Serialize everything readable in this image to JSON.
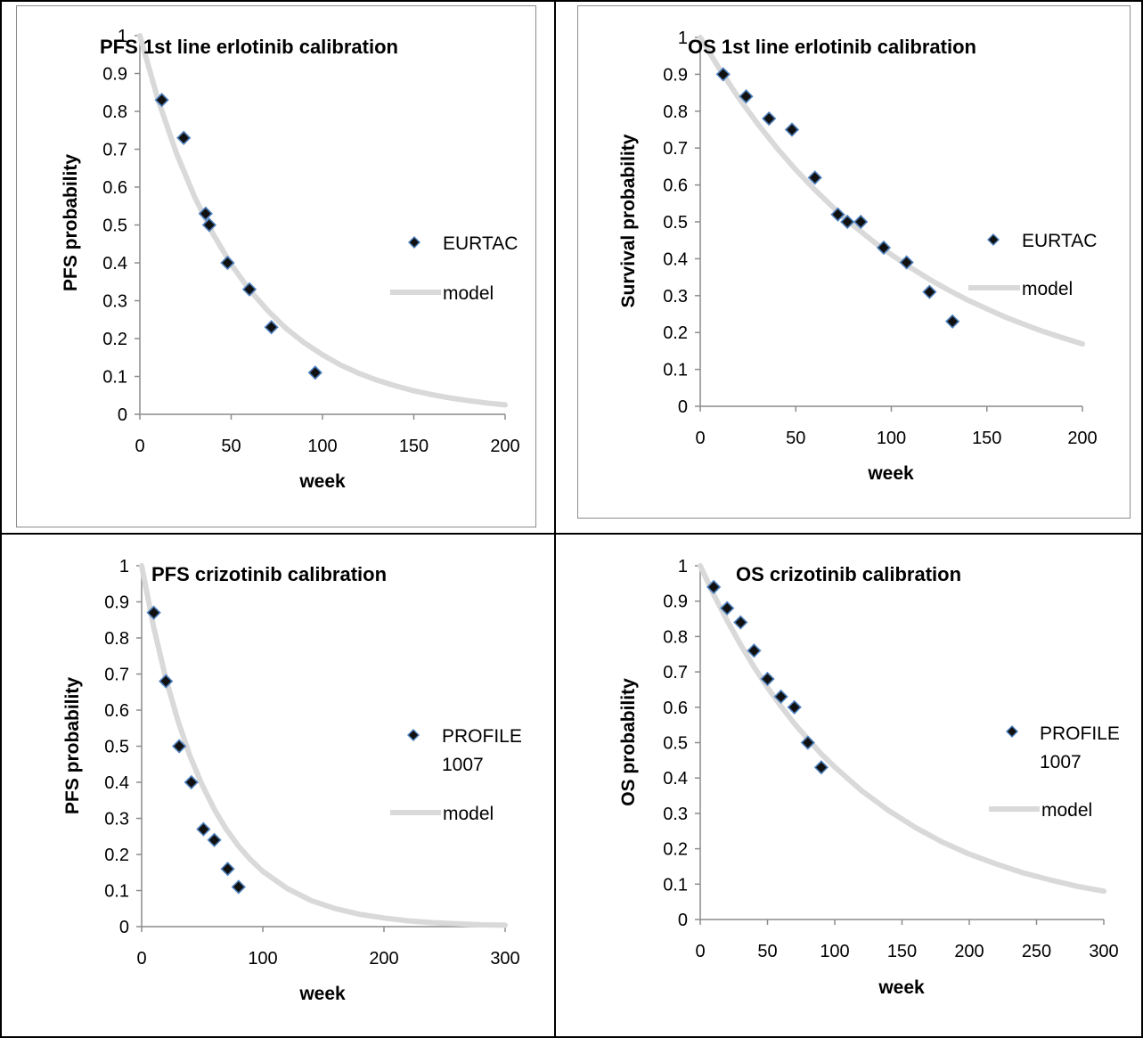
{
  "chart_data": [
    {
      "type": "scatter",
      "title": "PFS 1st line erlotinib calibration",
      "xlabel": "week",
      "ylabel": "PFS probability",
      "xlim": [
        0,
        200
      ],
      "ylim": [
        0,
        1
      ],
      "xticks": [
        "0",
        "50",
        "100",
        "150",
        "200"
      ],
      "yticks": [
        "0",
        "0.1",
        "0.2",
        "0.3",
        "0.4",
        "0.5",
        "0.6",
        "0.7",
        "0.8",
        "0.9",
        "1"
      ],
      "legend": [
        "EURTAC",
        "model"
      ],
      "legend_position": "right",
      "series": [
        {
          "name": "EURTAC",
          "kind": "points",
          "x": [
            12,
            24,
            36,
            38,
            48,
            60,
            72,
            96
          ],
          "y": [
            0.83,
            0.73,
            0.53,
            0.5,
            0.4,
            0.33,
            0.23,
            0.11
          ]
        },
        {
          "name": "model",
          "kind": "line",
          "x": [
            0,
            10,
            20,
            30,
            40,
            50,
            60,
            70,
            80,
            90,
            100,
            110,
            120,
            130,
            140,
            150,
            160,
            170,
            180,
            190,
            200
          ],
          "y": [
            1.0,
            0.83,
            0.69,
            0.574,
            0.477,
            0.396,
            0.329,
            0.274,
            0.227,
            0.189,
            0.157,
            0.13,
            0.108,
            0.09,
            0.075,
            0.062,
            0.052,
            0.043,
            0.036,
            0.03,
            0.025
          ]
        }
      ]
    },
    {
      "type": "scatter",
      "title": "OS 1st line erlotinib calibration",
      "xlabel": "week",
      "ylabel": "Survival probability",
      "xlim": [
        0,
        200
      ],
      "ylim": [
        0,
        1
      ],
      "xticks": [
        "0",
        "50",
        "100",
        "150",
        "200"
      ],
      "yticks": [
        "0",
        "0.1",
        "0.2",
        "0.3",
        "0.4",
        "0.5",
        "0.6",
        "0.7",
        "0.8",
        "0.9",
        "1"
      ],
      "legend": [
        "EURTAC",
        "model"
      ],
      "legend_position": "right",
      "series": [
        {
          "name": "EURTAC",
          "kind": "points",
          "x": [
            12,
            24,
            36,
            48,
            60,
            72,
            77,
            84,
            96,
            108,
            120,
            132
          ],
          "y": [
            0.9,
            0.84,
            0.78,
            0.75,
            0.62,
            0.52,
            0.5,
            0.5,
            0.43,
            0.39,
            0.31,
            0.23
          ]
        },
        {
          "name": "model",
          "kind": "line",
          "x": [
            0,
            10,
            20,
            30,
            40,
            50,
            60,
            70,
            80,
            90,
            100,
            110,
            120,
            130,
            140,
            150,
            160,
            170,
            180,
            190,
            200
          ],
          "y": [
            1.0,
            0.915,
            0.837,
            0.766,
            0.701,
            0.641,
            0.587,
            0.537,
            0.491,
            0.449,
            0.411,
            0.376,
            0.344,
            0.315,
            0.288,
            0.264,
            0.241,
            0.221,
            0.202,
            0.185,
            0.169
          ]
        }
      ]
    },
    {
      "type": "scatter",
      "title": "PFS crizotinib calibration",
      "xlabel": "week",
      "ylabel": "PFS probability",
      "xlim": [
        0,
        300
      ],
      "ylim": [
        0,
        1
      ],
      "xticks": [
        "0",
        "100",
        "200",
        "300"
      ],
      "yticks": [
        "0",
        "0.1",
        "0.2",
        "0.3",
        "0.4",
        "0.5",
        "0.6",
        "0.7",
        "0.8",
        "0.9",
        "1"
      ],
      "legend": [
        "PROFILE 1007",
        "model"
      ],
      "legend_position": "right",
      "series": [
        {
          "name": "PROFILE 1007",
          "kind": "points",
          "x": [
            10,
            20,
            31,
            41,
            51,
            60,
            71,
            80
          ],
          "y": [
            0.87,
            0.68,
            0.5,
            0.4,
            0.27,
            0.24,
            0.16,
            0.11
          ]
        },
        {
          "name": "model",
          "kind": "line",
          "x": [
            0,
            10,
            20,
            30,
            40,
            50,
            60,
            70,
            80,
            90,
            100,
            120,
            140,
            160,
            180,
            200,
            220,
            240,
            260,
            280,
            300
          ],
          "y": [
            1.0,
            0.829,
            0.687,
            0.57,
            0.472,
            0.392,
            0.325,
            0.269,
            0.223,
            0.185,
            0.153,
            0.106,
            0.072,
            0.05,
            0.034,
            0.024,
            0.016,
            0.011,
            0.008,
            0.005,
            0.004
          ]
        }
      ]
    },
    {
      "type": "scatter",
      "title": "OS crizotinib calibration",
      "xlabel": "week",
      "ylabel": "OS probability",
      "xlim": [
        0,
        300
      ],
      "ylim": [
        0,
        1
      ],
      "xticks": [
        "0",
        "50",
        "100",
        "150",
        "200",
        "250",
        "300"
      ],
      "yticks": [
        "0",
        "0.1",
        "0.2",
        "0.3",
        "0.4",
        "0.5",
        "0.6",
        "0.7",
        "0.8",
        "0.9",
        "1"
      ],
      "legend": [
        "PROFILE 1007",
        "model"
      ],
      "legend_position": "right",
      "series": [
        {
          "name": "PROFILE 1007",
          "kind": "points",
          "x": [
            10,
            20,
            30,
            40,
            50,
            60,
            70,
            80,
            90
          ],
          "y": [
            0.94,
            0.88,
            0.84,
            0.76,
            0.68,
            0.63,
            0.6,
            0.5,
            0.43
          ]
        },
        {
          "name": "model",
          "kind": "line",
          "x": [
            0,
            10,
            20,
            30,
            40,
            50,
            60,
            70,
            80,
            90,
            100,
            120,
            140,
            160,
            180,
            200,
            220,
            240,
            260,
            280,
            300
          ],
          "y": [
            1.0,
            0.919,
            0.845,
            0.777,
            0.714,
            0.656,
            0.603,
            0.554,
            0.51,
            0.468,
            0.431,
            0.364,
            0.308,
            0.26,
            0.219,
            0.185,
            0.157,
            0.132,
            0.112,
            0.094,
            0.08
          ]
        }
      ]
    }
  ]
}
